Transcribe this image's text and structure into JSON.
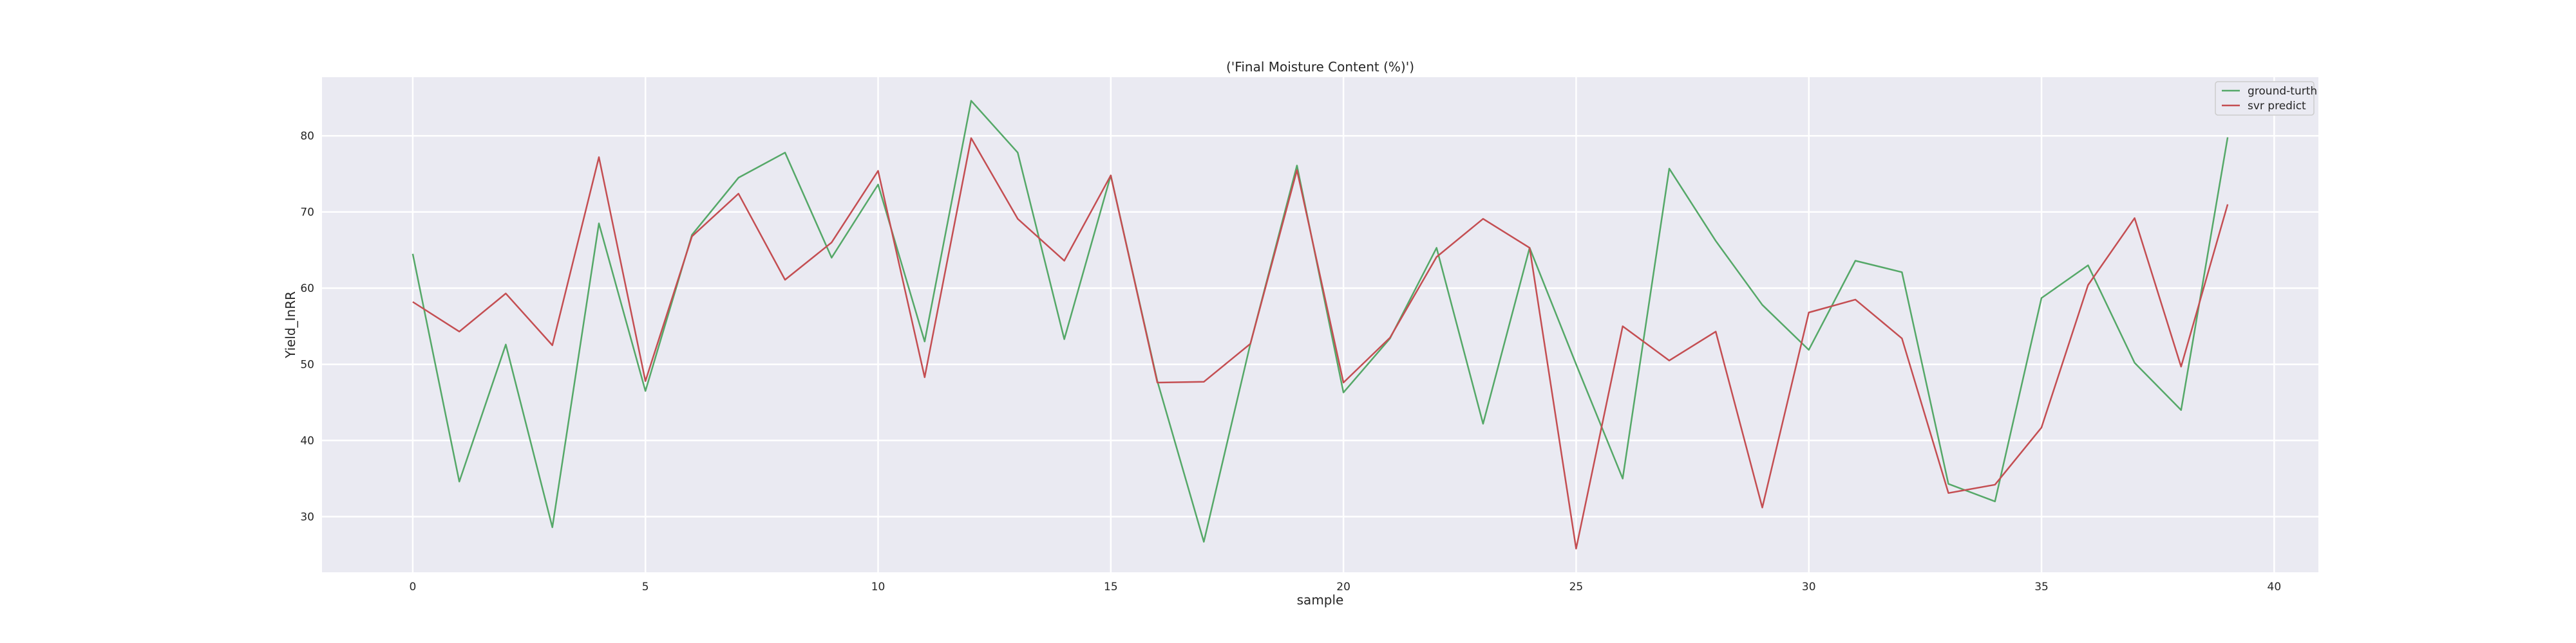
{
  "chart_data": {
    "type": "line",
    "title": "('Final Moisture Content (%)')",
    "xlabel": "sample",
    "ylabel": "Yield_InRR",
    "xlim": [
      -1.95,
      40.95
    ],
    "ylim": [
      22.7,
      87.7
    ],
    "xticks": [
      0,
      5,
      10,
      15,
      20,
      25,
      30,
      35,
      40
    ],
    "yticks": [
      30,
      40,
      50,
      60,
      70,
      80
    ],
    "grid": true,
    "legend_position": "top-right",
    "x": [
      0,
      1,
      2,
      3,
      4,
      5,
      6,
      7,
      8,
      9,
      10,
      11,
      12,
      13,
      14,
      15,
      16,
      17,
      18,
      19,
      20,
      21,
      22,
      23,
      24,
      25,
      26,
      27,
      28,
      29,
      30,
      31,
      32,
      33,
      34,
      35,
      36,
      37,
      38,
      39
    ],
    "series": [
      {
        "name": "ground-turth",
        "color": "#55a868",
        "values": [
          64.5,
          34.6,
          52.6,
          28.6,
          68.5,
          46.5,
          67.0,
          74.5,
          77.8,
          64.0,
          73.6,
          53.0,
          84.6,
          77.8,
          53.3,
          74.8,
          47.8,
          26.7,
          52.7,
          76.1,
          46.3,
          53.4,
          65.3,
          42.2,
          65.3,
          50.0,
          35.0,
          75.7,
          66.2,
          57.8,
          51.9,
          63.6,
          62.1,
          34.3,
          32.0,
          58.7,
          63.0,
          50.2,
          44.0,
          79.8
        ]
      },
      {
        "name": "svr predict",
        "color": "#c44e52",
        "values": [
          58.2,
          54.3,
          59.3,
          52.5,
          77.2,
          47.8,
          66.8,
          72.4,
          61.1,
          66.0,
          75.4,
          48.3,
          79.7,
          69.1,
          63.6,
          74.8,
          47.6,
          47.7,
          52.7,
          75.5,
          47.6,
          53.5,
          64.1,
          69.1,
          65.3,
          25.8,
          55.0,
          50.5,
          54.3,
          31.2,
          56.8,
          58.5,
          53.4,
          33.1,
          34.2,
          41.7,
          60.4,
          69.2,
          49.7,
          71.0
        ]
      }
    ]
  }
}
